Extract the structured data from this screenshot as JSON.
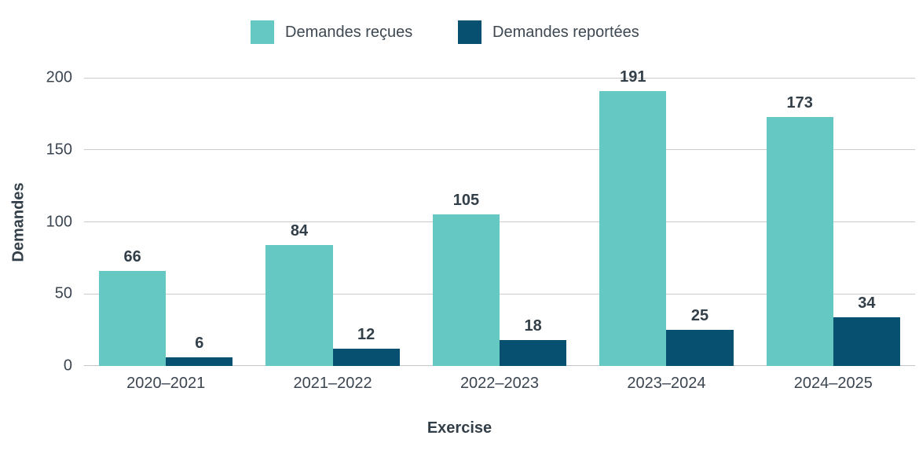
{
  "chart_data": {
    "type": "bar",
    "title": "",
    "categories": [
      "2020–2021",
      "2021–2022",
      "2022–2023",
      "2023–2024",
      "2024–2025"
    ],
    "series": [
      {
        "name": "Demandes reçues",
        "color": "#66c8c2",
        "values": [
          66,
          84,
          105,
          191,
          173
        ]
      },
      {
        "name": "Demandes reportées",
        "color": "#07506f",
        "values": [
          6,
          12,
          18,
          25,
          34
        ]
      }
    ],
    "xlabel": "Exercise",
    "ylabel": "Demandes",
    "ylim": [
      0,
      200
    ],
    "yticks": [
      0,
      50,
      100,
      150,
      200
    ],
    "grid": "horizontal",
    "legend_position": "top"
  },
  "colors": {
    "background": "#ffffff",
    "gridline": "#cbcbcb",
    "axis_line": "#bfc5c8",
    "text": "#3b4550",
    "value_label": "#333f48"
  }
}
